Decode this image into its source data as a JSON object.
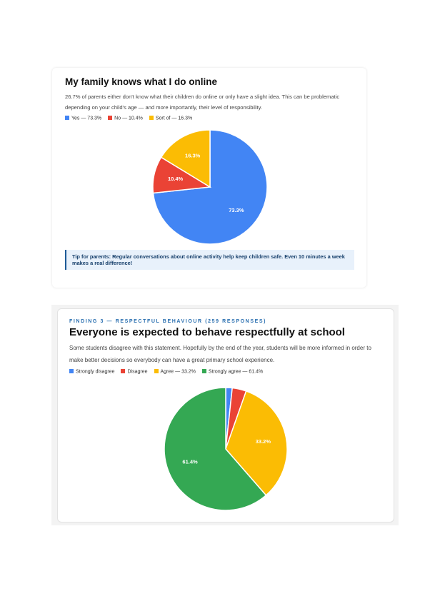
{
  "cards": [
    {
      "title": "My family knows what I do online",
      "text": "26.7% of parents either don't know what their children do online or only have a slight idea. This can be problematic depending on your child's age — and more importantly, their level of responsibility.",
      "chart_data": {
        "type": "pie",
        "categories": [
          "Yes — 73.3%",
          "No — 10.4%",
          "Sort of — 16.3%"
        ],
        "values": [
          73.3,
          10.4,
          16.3
        ],
        "value_labels": [
          "73.3%",
          "10.4%",
          "16.3%"
        ],
        "colors": [
          "#4285f4",
          "#ea4335",
          "#fbbc04"
        ]
      },
      "tip": "Tip for parents: Regular conversations about online activity help keep children safe. Even 10 minutes a week makes a real difference!"
    },
    {
      "kicker": "FINDING 3 — RESPECTFUL BEHAVIOUR (259 RESPONSES)",
      "title": "Everyone is expected to behave respectfully at school",
      "text": "Some students disagree with this statement. Hopefully by the end of the year, students will be more informed in order to make better decisions so everybody can have a great primary school experience.",
      "chart_data": {
        "type": "pie",
        "categories": [
          "Strongly disagree",
          "Disagree",
          "Agree — 33.2%",
          "Strongly agree — 61.4%"
        ],
        "values": [
          1.7,
          3.7,
          33.2,
          61.4
        ],
        "value_labels": [
          null,
          null,
          "33.2%",
          "61.4%"
        ],
        "colors": [
          "#4285f4",
          "#ea4335",
          "#fbbc04",
          "#34a853"
        ]
      }
    }
  ]
}
